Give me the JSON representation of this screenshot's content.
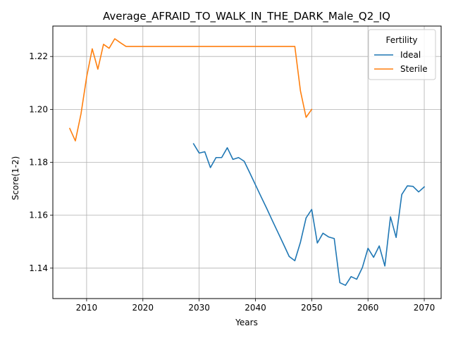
{
  "chart_data": {
    "type": "line",
    "title": "Average_AFRAID_TO_WALK_IN_THE_DARK_Male_Q2_IQ",
    "xlabel": "Years",
    "ylabel": "Score(1-2)",
    "xlim": [
      2004,
      2073
    ],
    "ylim": [
      1.1285,
      1.2315
    ],
    "xticks": [
      2010,
      2020,
      2030,
      2040,
      2050,
      2060,
      2070
    ],
    "yticks": [
      1.14,
      1.16,
      1.18,
      1.2,
      1.22
    ],
    "ytick_labels": [
      "1.14",
      "1.16",
      "1.18",
      "1.20",
      "1.22"
    ],
    "grid": true,
    "legend": {
      "title": "Fertility",
      "placement": "top-right"
    },
    "series": [
      {
        "name": "Ideal",
        "color": "#1f77b4",
        "x": [
          2029,
          2030,
          2031,
          2032,
          2033,
          2034,
          2035,
          2036,
          2037,
          2038,
          2039,
          2040,
          2041,
          2042,
          2043,
          2044,
          2045,
          2046,
          2047,
          2048,
          2049,
          2050,
          2051,
          2052,
          2053,
          2054,
          2055,
          2056,
          2057,
          2058,
          2059,
          2060,
          2061,
          2062,
          2063,
          2064,
          2065,
          2066,
          2067,
          2068,
          2069,
          2070
        ],
        "y": [
          1.187,
          1.1835,
          1.184,
          1.178,
          1.1818,
          1.1818,
          1.1855,
          1.1811,
          1.1818,
          1.1804,
          1.176,
          1.1715,
          1.167,
          1.1626,
          1.158,
          1.1535,
          1.149,
          1.1444,
          1.1428,
          1.1498,
          1.159,
          1.1622,
          1.1495,
          1.1532,
          1.1518,
          1.1512,
          1.1345,
          1.1335,
          1.1368,
          1.1358,
          1.1402,
          1.1475,
          1.1441,
          1.1484,
          1.1408,
          1.1594,
          1.1516,
          1.1678,
          1.1711,
          1.1709,
          1.1688,
          1.1707
        ]
      },
      {
        "name": "Sterile",
        "color": "#ff7f0e",
        "x": [
          2007,
          2008,
          2009,
          2010,
          2011,
          2012,
          2013,
          2014,
          2015,
          2016,
          2017,
          2018,
          2019,
          2020,
          2025,
          2030,
          2035,
          2040,
          2045,
          2047,
          2048,
          2049,
          2050
        ],
        "y": [
          1.1928,
          1.1881,
          1.1983,
          1.2122,
          1.2229,
          1.2152,
          1.2246,
          1.2231,
          1.2267,
          1.2252,
          1.2238,
          1.2238,
          1.2238,
          1.2238,
          1.2238,
          1.2238,
          1.2238,
          1.2238,
          1.2238,
          1.2238,
          1.207,
          1.197,
          1.2
        ]
      }
    ]
  }
}
